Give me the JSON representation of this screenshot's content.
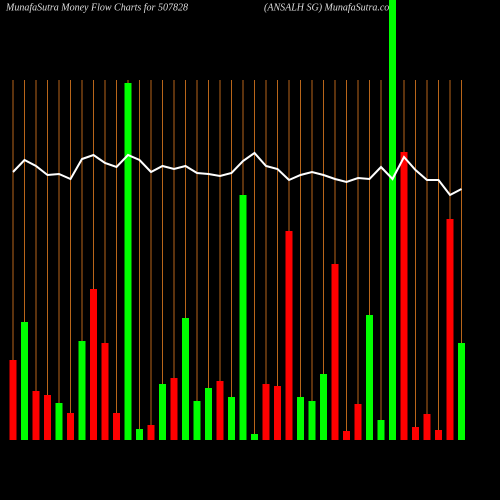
{
  "chart_data": {
    "type": "bar",
    "title": "MunafaSutra  Money Flow  Charts for 507828",
    "subtitle": "(ANSALH                    SG) MunafaSutra.com",
    "categories": [
      null,
      null,
      null,
      null,
      null,
      null,
      null,
      null,
      null,
      null,
      null,
      null,
      null,
      null,
      null,
      null,
      null,
      null,
      null,
      null,
      null,
      null,
      null,
      null,
      null,
      null,
      null,
      null,
      null,
      null,
      null,
      null,
      null,
      null,
      null,
      null,
      null,
      null,
      null,
      null
    ],
    "values": [
      80,
      118,
      49,
      45,
      37,
      27,
      99,
      151,
      97,
      27,
      357,
      11,
      15,
      56,
      62,
      122,
      39,
      52,
      59,
      43,
      245,
      6,
      56,
      54,
      209,
      43,
      39,
      66,
      176,
      9,
      36,
      125,
      20,
      440,
      288,
      13,
      26,
      10,
      221,
      97
    ],
    "colors": [
      "#ff0000",
      "#00ff00",
      "#ff0000",
      "#ff0000",
      "#00ff00",
      "#ff0000",
      "#00ff00",
      "#ff0000",
      "#ff0000",
      "#ff0000",
      "#00ff00",
      "#00ff00",
      "#ff0000",
      "#00ff00",
      "#ff0000",
      "#00ff00",
      "#00ff00",
      "#00ff00",
      "#ff0000",
      "#00ff00",
      "#00ff00",
      "#00ff00",
      "#ff0000",
      "#ff0000",
      "#ff0000",
      "#00ff00",
      "#00ff00",
      "#00ff00",
      "#ff0000",
      "#ff0000",
      "#ff0000",
      "#00ff00",
      "#00ff00",
      "#00ff00",
      "#ff0000",
      "#ff0000",
      "#ff0000",
      "#ff0000",
      "#ff0000",
      "#00ff00"
    ],
    "line": {
      "color": "#ffffff",
      "values": [
        268,
        280,
        274,
        265,
        266,
        261,
        281,
        285,
        277,
        273,
        285,
        280,
        268,
        274,
        271,
        274,
        267,
        266,
        264,
        267,
        279,
        287,
        274,
        271,
        260,
        265,
        268,
        265,
        261,
        258,
        262,
        261,
        273,
        261,
        283,
        270,
        260,
        260,
        245,
        251
      ]
    },
    "ylim": [
      0,
      440
    ],
    "grid": true,
    "grid_color": "#b8651a"
  }
}
